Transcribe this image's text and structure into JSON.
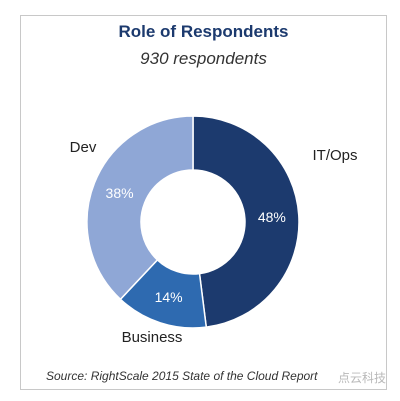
{
  "chart_data": {
    "type": "pie",
    "title": "Role of Respondents",
    "subtitle": "930 respondents",
    "slices": [
      {
        "label": "IT/Ops",
        "value": 48,
        "value_label": "48%",
        "color": "#1c3a6e"
      },
      {
        "label": "Business",
        "value": 14,
        "value_label": "14%",
        "color": "#2e6ab0"
      },
      {
        "label": "Dev",
        "value": 38,
        "value_label": "38%",
        "color": "#8fa7d6"
      }
    ],
    "source": "Source: RightScale 2015 State of the Cloud Report"
  },
  "watermark": "点云科技"
}
